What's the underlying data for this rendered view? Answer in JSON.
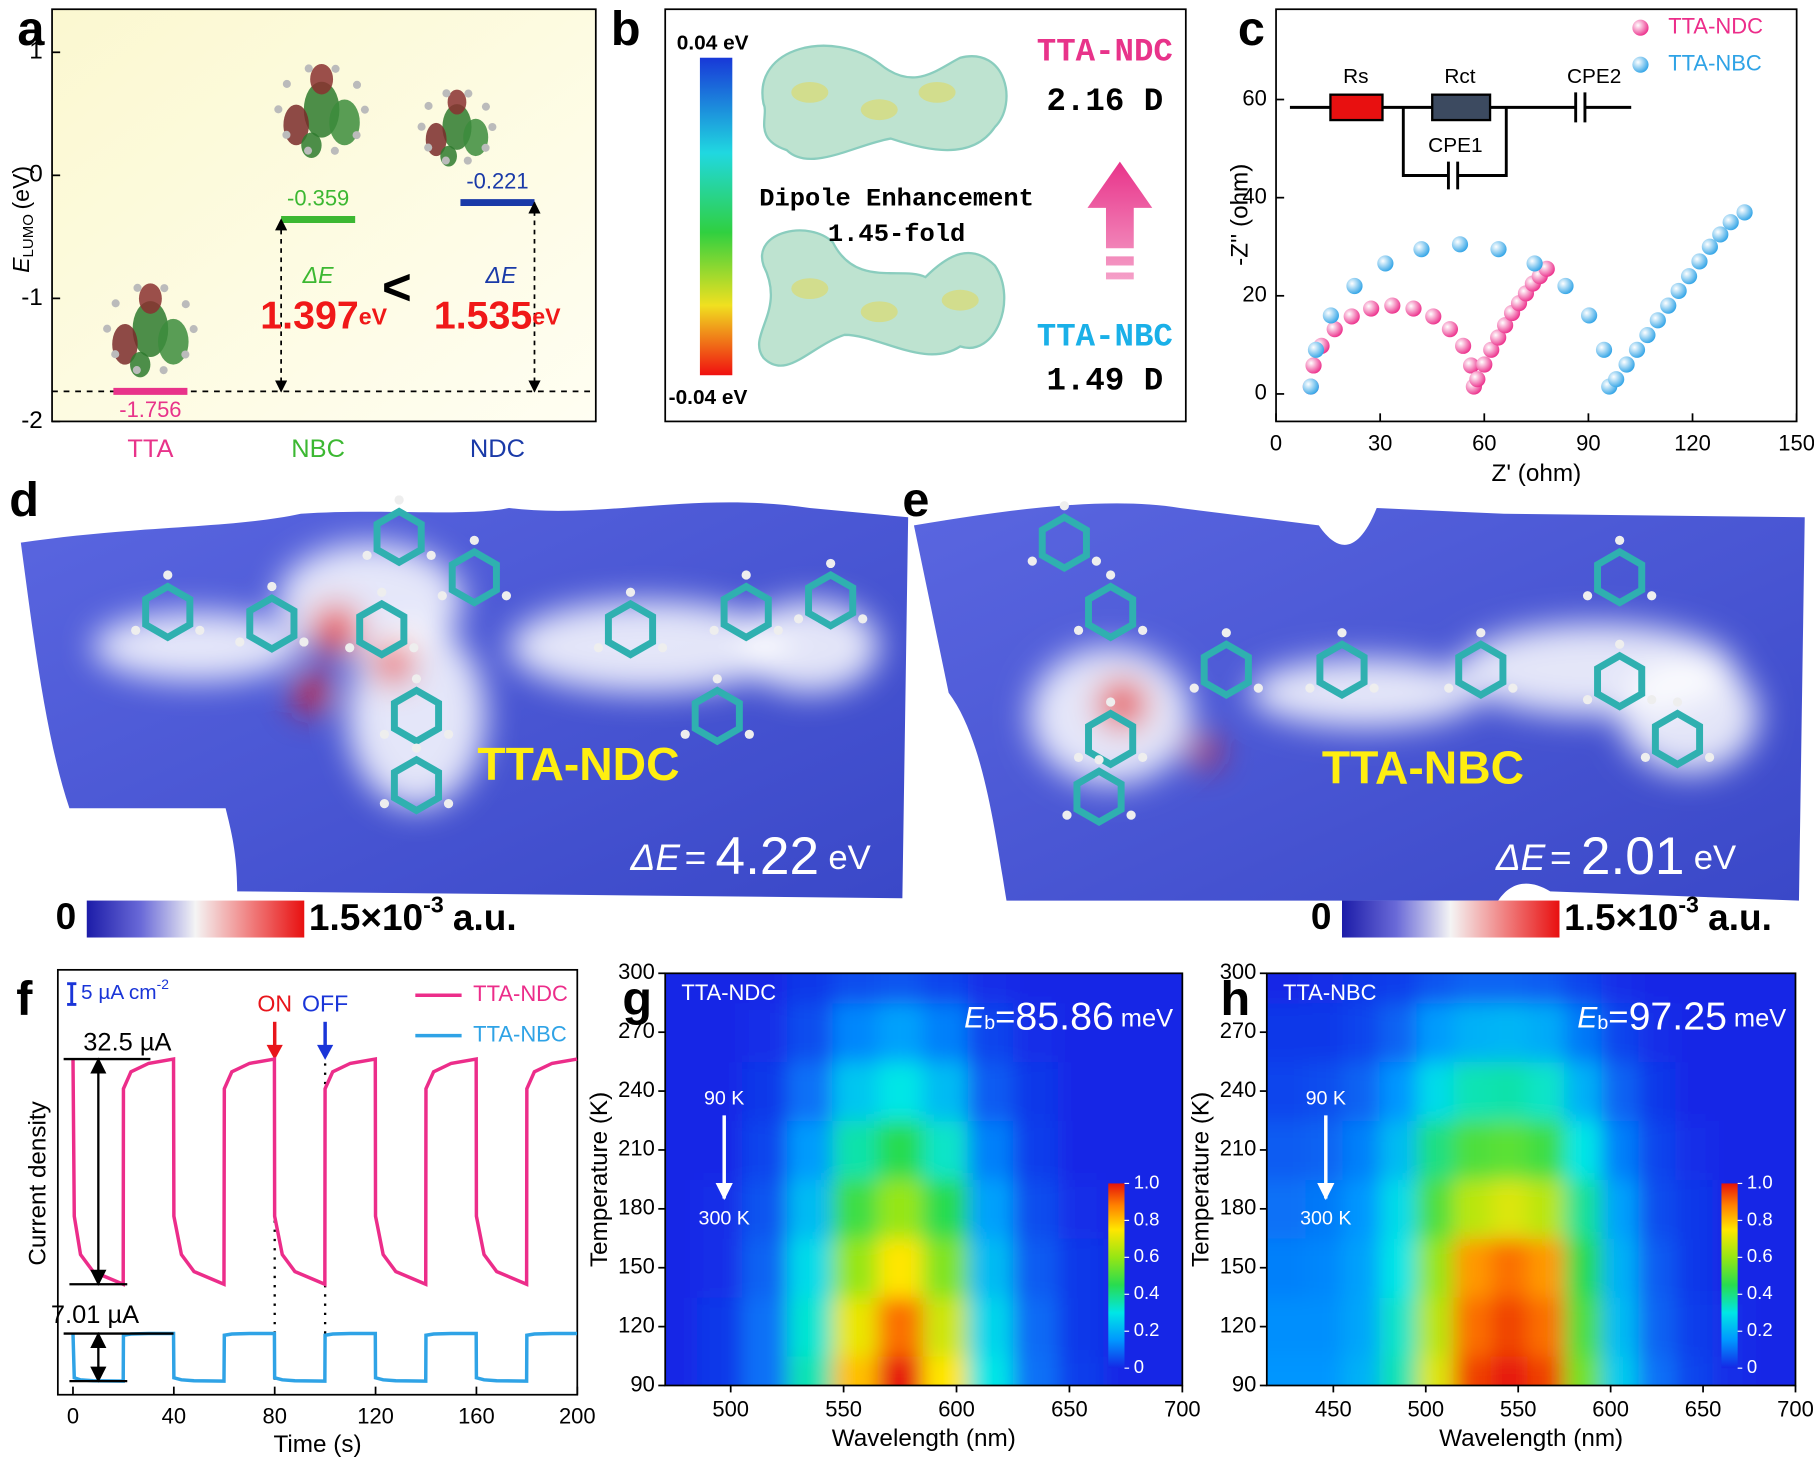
{
  "panel_labels": [
    "a",
    "b",
    "c",
    "d",
    "e",
    "f",
    "g",
    "h"
  ],
  "chart_data": [
    {
      "type": "energy-level",
      "ylabel": "E",
      "ylabel_sub": "LUMO",
      "ylabel_unit": "(eV)",
      "categories": [
        "TTA",
        "NBC",
        "NDC"
      ],
      "values": [
        -1.756,
        -0.359,
        -0.221
      ],
      "colors": [
        "#e8338a",
        "#3cb832",
        "#1a3aa8"
      ],
      "ylim": [
        -2,
        1.35
      ],
      "yticks": [
        -2,
        -1,
        0,
        1
      ],
      "delta_symbol": "ΔE",
      "deltas": [
        1.397,
        1.535
      ],
      "delta_unit": "eV",
      "comparison": "<"
    },
    {
      "type": "scatter",
      "xlabel": "Z' (ohm)",
      "ylabel": "-Z'' (ohm)",
      "xlim": [
        0,
        150
      ],
      "ylim": [
        -5.6,
        78.4
      ],
      "xticks": [
        0,
        30,
        60,
        90,
        120,
        150
      ],
      "yticks": [
        0,
        20,
        40,
        60
      ],
      "legend": "upper right",
      "circuit_labels": [
        "Rs",
        "Rct",
        "CPE2",
        "CPE1"
      ],
      "series": [
        {
          "name": "TTA-NDC",
          "color": "#ec2d8a",
          "x": [
            10,
            10.8,
            13.1,
            16.9,
            21.8,
            27.4,
            33.5,
            39.6,
            45.3,
            50.1,
            53.9,
            56.2,
            57,
            58,
            60,
            62,
            64,
            66,
            68,
            70,
            72,
            74,
            76,
            78
          ],
          "values": [
            1.5,
            5.8,
            9.8,
            13.2,
            15.8,
            17.4,
            18,
            17.4,
            15.8,
            13.2,
            9.8,
            5.8,
            1.5,
            3,
            6,
            9,
            11.5,
            14,
            16.5,
            18.5,
            20.5,
            22.5,
            24,
            25.5
          ]
        },
        {
          "name": "TTA-NBC",
          "color": "#2fa3e6",
          "x": [
            10,
            11.5,
            15.8,
            22.6,
            31.5,
            41.9,
            53,
            64.1,
            74.5,
            83.4,
            90.2,
            94.5,
            96,
            98,
            101,
            104,
            107,
            110,
            113,
            116,
            119,
            122,
            125,
            128,
            131,
            135
          ],
          "values": [
            1.5,
            9,
            16,
            22,
            26.6,
            29.5,
            30.5,
            29.5,
            26.6,
            22,
            16,
            9,
            1.5,
            3,
            6,
            9,
            12,
            15,
            18,
            21,
            24,
            27,
            30,
            32.5,
            35,
            37
          ]
        }
      ]
    },
    {
      "type": "line",
      "xlabel": "Time (s)",
      "ylabel": "Current density",
      "xlim": [
        -6,
        200
      ],
      "ylim": [
        0,
        100
      ],
      "xticks": [
        0,
        40,
        80,
        120,
        160,
        200
      ],
      "legend": "upper right",
      "x": [
        0,
        0.5,
        3,
        8,
        19.9,
        20,
        23,
        30,
        39.9,
        40,
        43,
        48,
        59.9,
        60,
        63,
        70,
        79.9,
        80,
        83,
        88,
        99.9,
        100,
        103,
        110,
        119.9,
        120,
        123,
        128,
        139.9,
        140,
        143,
        150,
        159.9,
        160,
        163,
        168,
        179.9,
        180,
        183,
        190,
        199.9
      ],
      "series": [
        {
          "name": "TTA-NDC",
          "color": "#ec2d8a",
          "values": [
            79,
            42,
            33,
            29,
            26,
            72,
            76,
            78,
            79,
            42,
            33,
            29,
            26,
            72,
            76,
            78,
            79,
            42,
            33,
            29,
            26,
            72,
            76,
            78,
            79,
            42,
            33,
            29,
            26,
            72,
            76,
            78,
            79,
            42,
            33,
            29,
            26,
            72,
            76,
            78,
            79
          ]
        },
        {
          "name": "TTA-NBC",
          "color": "#2fa3e6",
          "values": [
            14.4,
            4,
            3.5,
            3.3,
            3.2,
            14,
            14.3,
            14.4,
            14.4,
            4,
            3.5,
            3.3,
            3.2,
            14,
            14.3,
            14.4,
            14.4,
            4,
            3.5,
            3.3,
            3.2,
            14,
            14.3,
            14.4,
            14.4,
            4,
            3.5,
            3.3,
            3.2,
            14,
            14.3,
            14.4,
            14.4,
            4,
            3.5,
            3.3,
            3.2,
            14,
            14.3,
            14.4,
            14.4
          ]
        }
      ],
      "amplitude_labels": [
        "32.5 µA",
        "7.01 µA"
      ],
      "scale_bar": "5 µA cm",
      "scale_bar_exp": "-2",
      "switch_labels": [
        "ON",
        "OFF"
      ],
      "switch_colors": [
        "#e8151b",
        "#1a35d8"
      ],
      "switch_times": [
        80,
        100
      ]
    },
    {
      "type": "heatmap",
      "title": "TTA-NDC",
      "xlabel": "Wavelength (nm)",
      "ylabel": "Temperature (K)",
      "xlim": [
        471,
        700
      ],
      "ylim": [
        90,
        300
      ],
      "xticks": [
        500,
        550,
        600,
        650,
        700
      ],
      "yticks": [
        90,
        120,
        150,
        180,
        210,
        240,
        270,
        300
      ],
      "x": [
        475,
        495,
        515,
        535,
        555,
        575,
        595,
        615,
        635,
        655,
        675,
        695
      ],
      "y": [
        90,
        120,
        150,
        180,
        210,
        240,
        270,
        300
      ],
      "z": [
        [
          0,
          0.02,
          0.1,
          0.35,
          0.8,
          1.0,
          0.75,
          0.3,
          0.1,
          0.03,
          0,
          0
        ],
        [
          0,
          0.02,
          0.1,
          0.32,
          0.72,
          0.9,
          0.68,
          0.27,
          0.09,
          0.02,
          0,
          0
        ],
        [
          0,
          0.01,
          0.08,
          0.28,
          0.6,
          0.75,
          0.57,
          0.22,
          0.07,
          0.02,
          0,
          0
        ],
        [
          0,
          0.01,
          0.06,
          0.22,
          0.48,
          0.6,
          0.45,
          0.17,
          0.05,
          0.01,
          0,
          0
        ],
        [
          0,
          0,
          0.04,
          0.16,
          0.36,
          0.45,
          0.33,
          0.12,
          0.03,
          0,
          0,
          0
        ],
        [
          0,
          0,
          0.02,
          0.1,
          0.24,
          0.3,
          0.22,
          0.07,
          0.02,
          0,
          0,
          0
        ],
        [
          0,
          0,
          0.01,
          0.05,
          0.13,
          0.17,
          0.12,
          0.04,
          0.01,
          0,
          0,
          0
        ],
        [
          0,
          0,
          0,
          0.02,
          0.05,
          0.06,
          0.04,
          0.01,
          0,
          0,
          0,
          0
        ]
      ],
      "colorbar_ticks": [
        0,
        0.2,
        0.4,
        0.6,
        0.8,
        {
          "value": 1,
          "label": "1.0"
        }
      ],
      "eb_symbol": "E",
      "eb_sub": "b",
      "eb_sign": "=",
      "eb": 85.86,
      "eb_unit": "meV",
      "arrow_labels": [
        "90 K",
        "300 K"
      ]
    },
    {
      "type": "heatmap",
      "title": "TTA-NBC",
      "xlabel": "Wavelength (nm)",
      "ylabel": "Temperature (K)",
      "xlim": [
        414,
        700
      ],
      "ylim": [
        90,
        300
      ],
      "xticks": [
        450,
        500,
        550,
        600,
        650,
        700
      ],
      "yticks": [
        90,
        120,
        150,
        180,
        210,
        240,
        270,
        300
      ],
      "x": [
        425,
        445,
        465,
        485,
        505,
        525,
        545,
        565,
        585,
        605,
        625,
        645,
        665,
        685
      ],
      "y": [
        90,
        120,
        150,
        180,
        210,
        240,
        270,
        300
      ],
      "z": [
        [
          0.15,
          0.15,
          0.2,
          0.35,
          0.7,
          0.95,
          1.0,
          0.95,
          0.55,
          0.25,
          0.1,
          0.04,
          0.01,
          0
        ],
        [
          0.14,
          0.14,
          0.18,
          0.33,
          0.65,
          0.9,
          0.95,
          0.9,
          0.5,
          0.22,
          0.08,
          0.03,
          0.01,
          0
        ],
        [
          0.12,
          0.13,
          0.17,
          0.3,
          0.6,
          0.85,
          0.9,
          0.85,
          0.45,
          0.2,
          0.07,
          0.02,
          0,
          0
        ],
        [
          0.1,
          0.11,
          0.15,
          0.28,
          0.5,
          0.65,
          0.7,
          0.65,
          0.38,
          0.17,
          0.05,
          0.02,
          0,
          0
        ],
        [
          0.07,
          0.08,
          0.12,
          0.22,
          0.4,
          0.5,
          0.52,
          0.48,
          0.3,
          0.12,
          0.04,
          0.01,
          0,
          0
        ],
        [
          0.04,
          0.05,
          0.08,
          0.15,
          0.28,
          0.35,
          0.36,
          0.33,
          0.2,
          0.08,
          0.02,
          0,
          0,
          0
        ],
        [
          0.02,
          0.02,
          0.04,
          0.08,
          0.16,
          0.2,
          0.21,
          0.19,
          0.11,
          0.04,
          0.01,
          0,
          0,
          0
        ],
        [
          0,
          0.01,
          0.02,
          0.03,
          0.06,
          0.08,
          0.08,
          0.07,
          0.04,
          0.01,
          0,
          0,
          0,
          0
        ]
      ],
      "colorbar_ticks": [
        0,
        0.2,
        0.4,
        0.6,
        0.8,
        {
          "value": 1,
          "label": "1.0"
        }
      ],
      "eb_symbol": "E",
      "eb_sub": "b",
      "eb_sign": "=",
      "eb": 97.25,
      "eb_unit": "meV",
      "arrow_labels": [
        "90 K",
        "300 K"
      ]
    }
  ],
  "panel_b": {
    "colorbar_max": "0.04 eV",
    "colorbar_min": "-0.04 eV",
    "top_name": "TTA-NDC",
    "top_dipole": "2.16 D",
    "note": [
      "Dipole Enhancement",
      "1.45-fold"
    ],
    "bottom_name": "TTA-NBC",
    "bottom_dipole": "1.49 D"
  },
  "panel_d": {
    "name": "TTA-NDC",
    "delta_symbol": "ΔE",
    "sign": "=",
    "delta": 4.22,
    "unit": "eV",
    "scale_min": "0",
    "scale_max": "1.5×10",
    "scale_exp": "-3",
    "scale_unit": "a.u."
  },
  "panel_e": {
    "name": "TTA-NBC",
    "delta_symbol": "ΔE",
    "sign": "=",
    "delta": 2.01,
    "unit": "eV",
    "scale_min": "0",
    "scale_max": "1.5×10",
    "scale_exp": "-3",
    "scale_unit": "a.u."
  }
}
